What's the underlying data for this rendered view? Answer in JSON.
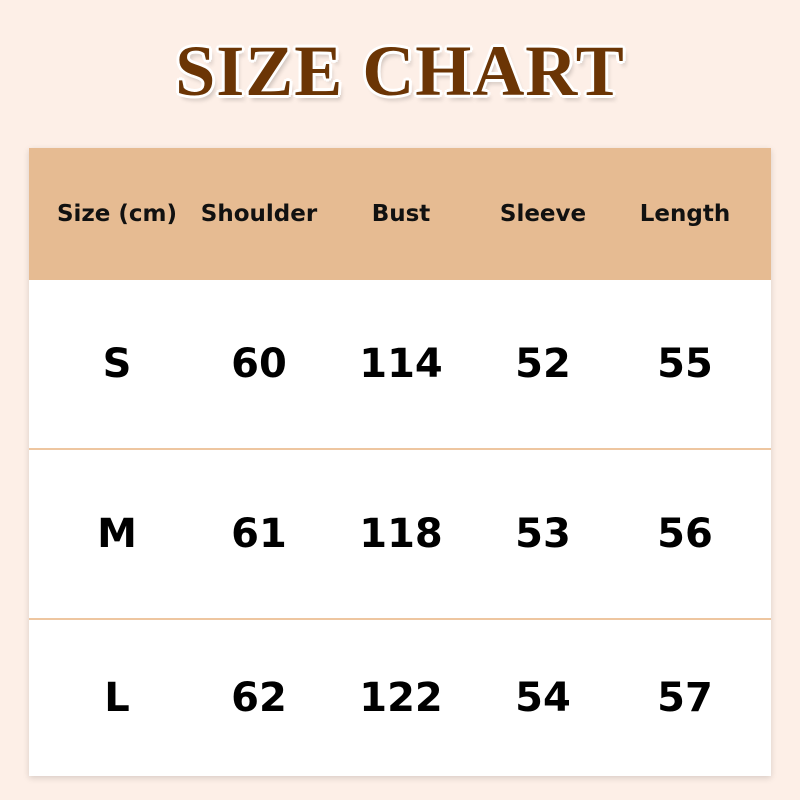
{
  "title": "SIZE CHART",
  "colors": {
    "background": "#fdefe7",
    "title": "#6b3505",
    "header_bg": "#e6bb92",
    "divider": "#eec6a0"
  },
  "chart_data": {
    "type": "table",
    "headers": [
      "Size (cm)",
      "Shoulder",
      "Bust",
      "Sleeve",
      "Length"
    ],
    "rows": [
      [
        "S",
        "60",
        "114",
        "52",
        "55"
      ],
      [
        "M",
        "61",
        "118",
        "53",
        "56"
      ],
      [
        "L",
        "62",
        "122",
        "54",
        "57"
      ]
    ]
  }
}
